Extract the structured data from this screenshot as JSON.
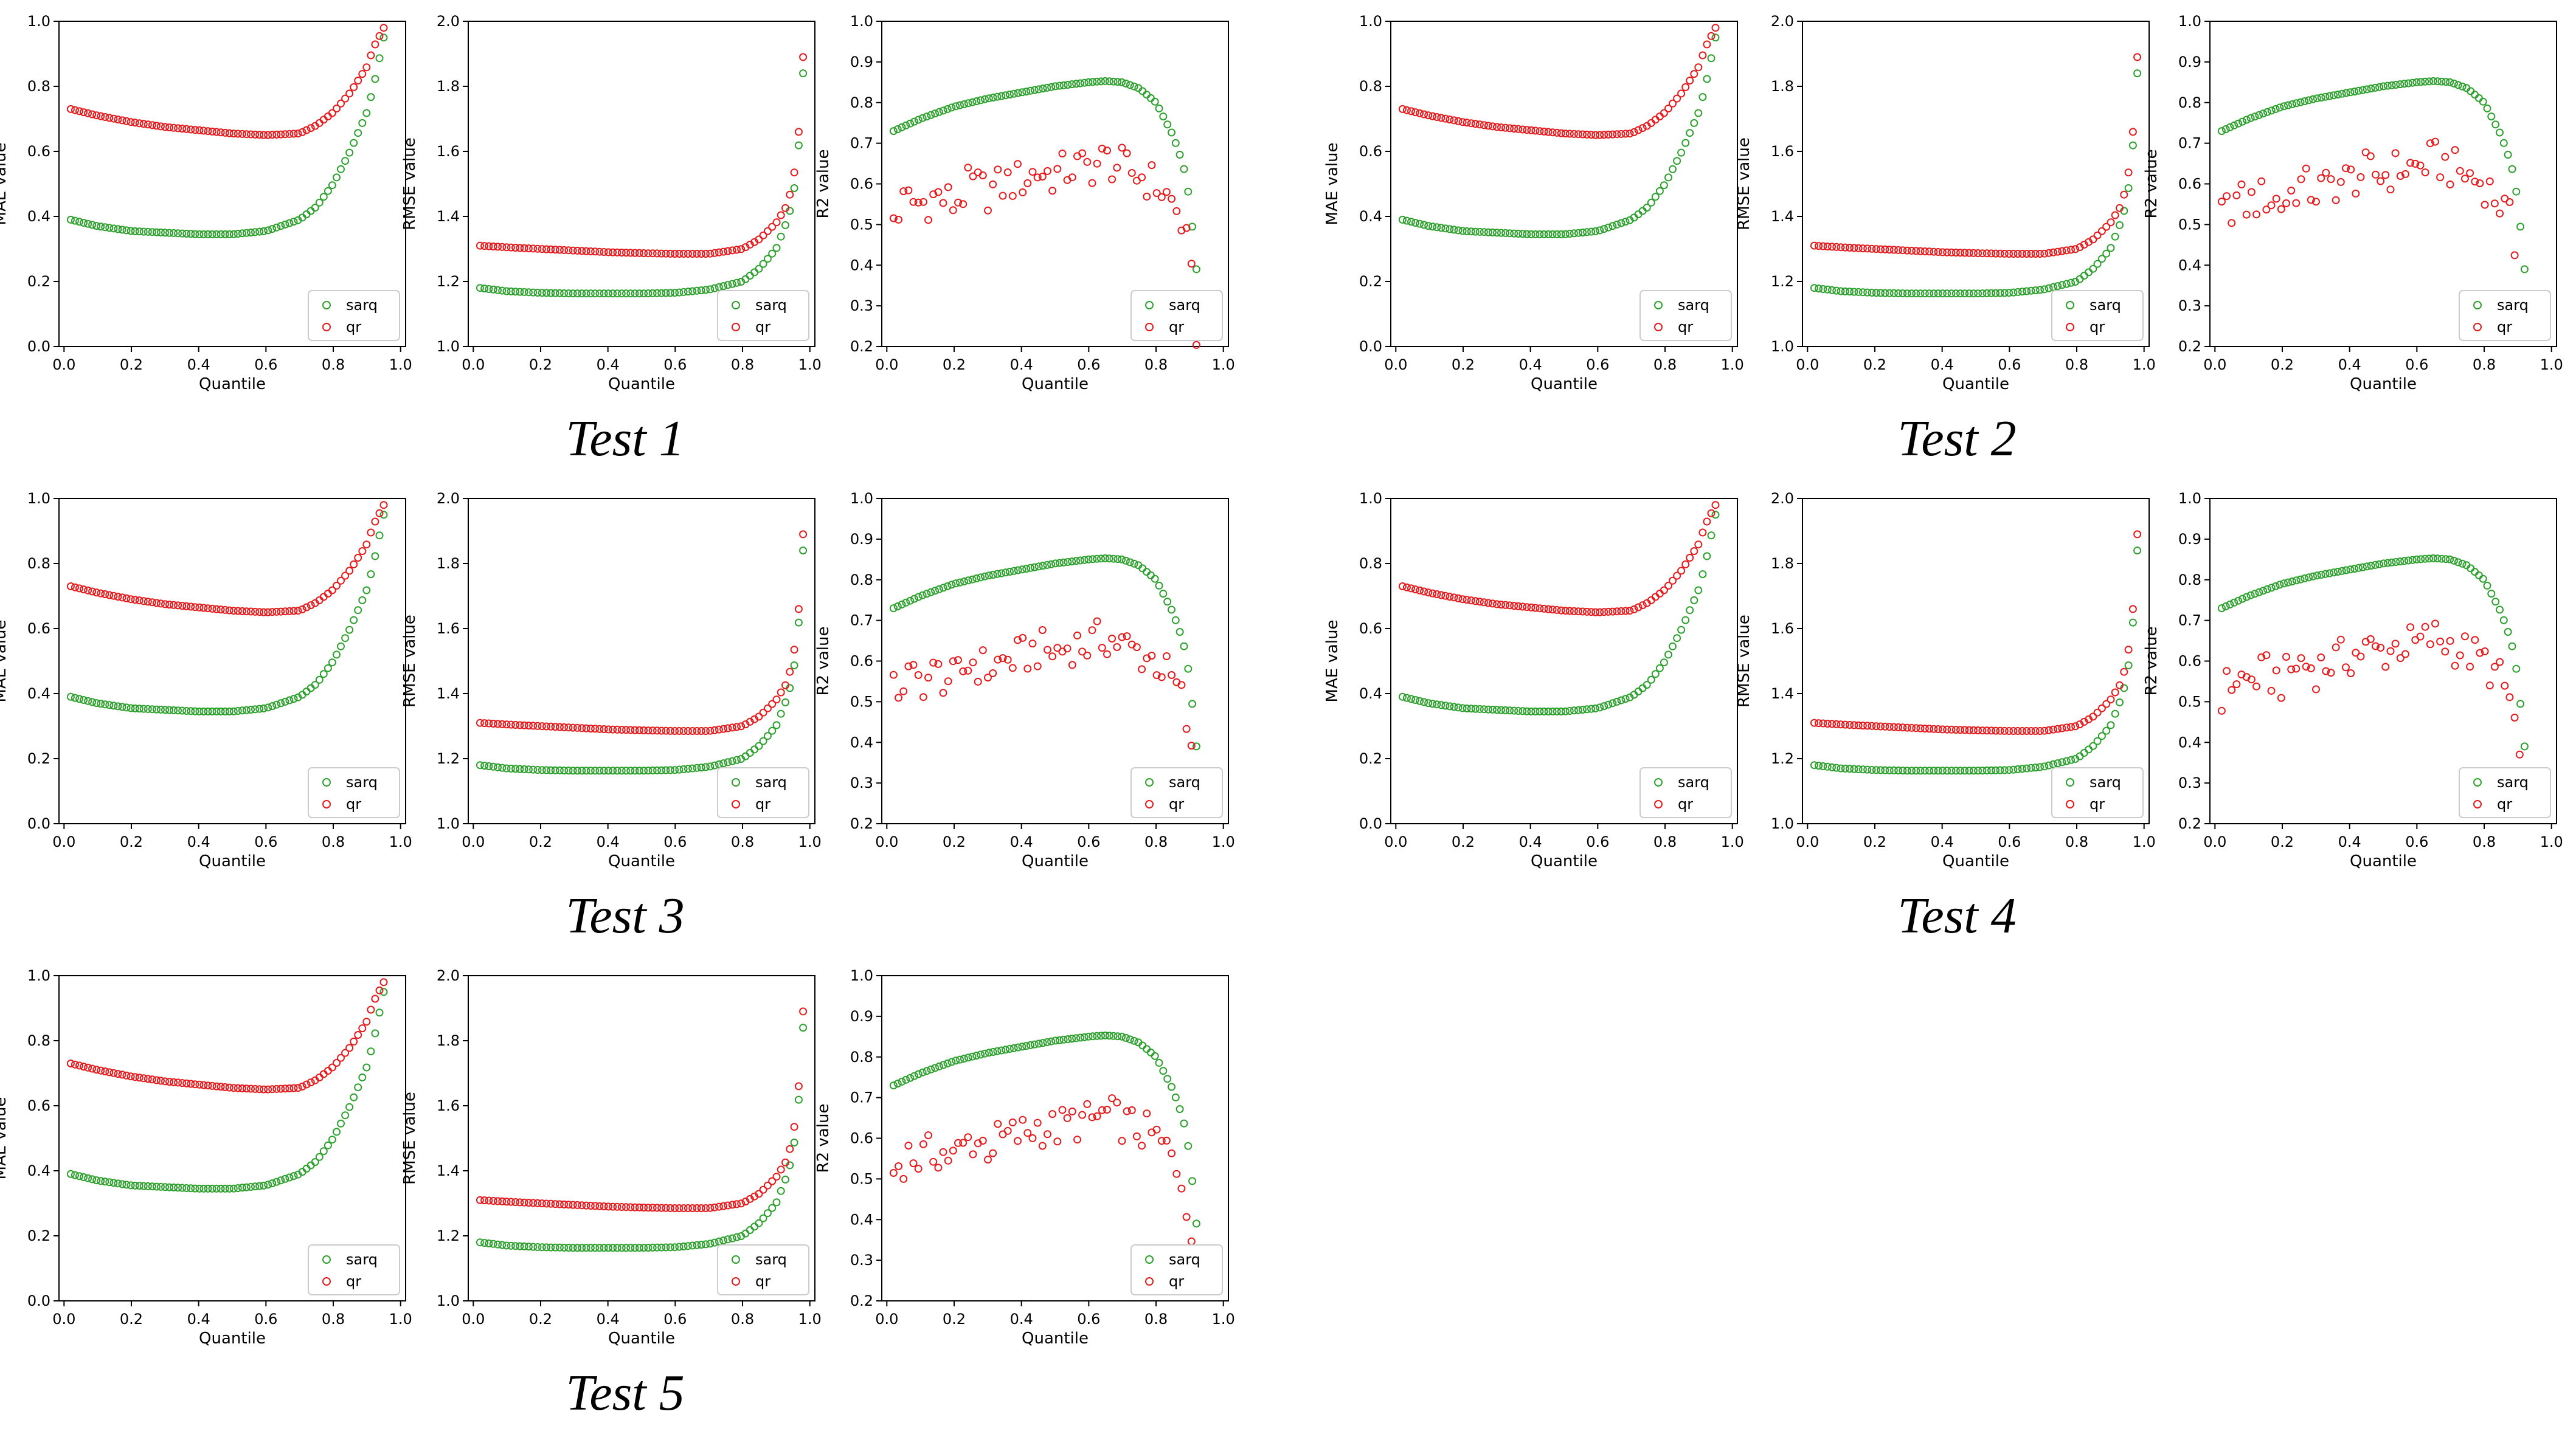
{
  "figure": {
    "x_label": "Quantile",
    "legend": [
      "sarq",
      "qr"
    ],
    "colors": {
      "sarq": "#2ca02c",
      "qr": "#e41a1c",
      "axis": "#000000"
    },
    "legend_position": "bottom-right"
  },
  "tests": [
    {
      "title": "Test 1"
    },
    {
      "title": "Test 2"
    },
    {
      "title": "Test 3"
    },
    {
      "title": "Test 4"
    },
    {
      "title": "Test 5"
    }
  ],
  "chart_data": [
    {
      "type": "scatter",
      "metric": "MAE",
      "ylabel": "MAE value",
      "xlabel": "Quantile",
      "xlim": [
        0,
        1
      ],
      "ylim": [
        0.0,
        1.0
      ],
      "xticks": [
        "0.0",
        "0.2",
        "0.4",
        "0.6",
        "0.8",
        "1.0"
      ],
      "yticks": [
        "0.0",
        "0.2",
        "0.4",
        "0.6",
        "0.8",
        "1.0"
      ],
      "series": [
        {
          "name": "sarq",
          "x": [
            0.02,
            0.1,
            0.2,
            0.3,
            0.4,
            0.5,
            0.6,
            0.7,
            0.75,
            0.8,
            0.85,
            0.9,
            0.92,
            0.95
          ],
          "values": [
            0.39,
            0.37,
            0.355,
            0.35,
            0.345,
            0.345,
            0.355,
            0.39,
            0.43,
            0.5,
            0.6,
            0.72,
            0.8,
            0.95
          ]
        },
        {
          "name": "qr",
          "x": [
            0.02,
            0.1,
            0.2,
            0.3,
            0.4,
            0.5,
            0.6,
            0.7,
            0.75,
            0.8,
            0.85,
            0.9,
            0.92,
            0.95
          ],
          "values": [
            0.73,
            0.71,
            0.69,
            0.675,
            0.665,
            0.655,
            0.65,
            0.655,
            0.68,
            0.72,
            0.78,
            0.86,
            0.92,
            0.98
          ]
        }
      ]
    },
    {
      "type": "scatter",
      "metric": "RMSE",
      "ylabel": "RMSE value",
      "xlabel": "Quantile",
      "xlim": [
        0,
        1
      ],
      "ylim": [
        1.0,
        2.0
      ],
      "xticks": [
        "0.0",
        "0.2",
        "0.4",
        "0.6",
        "0.8",
        "1.0"
      ],
      "yticks": [
        "1.0",
        "1.2",
        "1.4",
        "1.6",
        "1.8",
        "2.0"
      ],
      "series": [
        {
          "name": "sarq",
          "x": [
            0.02,
            0.1,
            0.2,
            0.3,
            0.4,
            0.5,
            0.6,
            0.7,
            0.8,
            0.85,
            0.9,
            0.93,
            0.95,
            0.97,
            0.98
          ],
          "values": [
            1.18,
            1.17,
            1.165,
            1.163,
            1.163,
            1.163,
            1.165,
            1.175,
            1.2,
            1.24,
            1.3,
            1.38,
            1.45,
            1.65,
            1.84
          ]
        },
        {
          "name": "qr",
          "x": [
            0.02,
            0.1,
            0.2,
            0.3,
            0.4,
            0.5,
            0.6,
            0.7,
            0.8,
            0.85,
            0.9,
            0.93,
            0.95,
            0.97,
            0.98
          ],
          "values": [
            1.31,
            1.305,
            1.3,
            1.295,
            1.29,
            1.287,
            1.285,
            1.285,
            1.3,
            1.33,
            1.38,
            1.43,
            1.5,
            1.69,
            1.89
          ]
        }
      ]
    },
    {
      "type": "scatter",
      "metric": "R2",
      "ylabel": "R2 value",
      "xlabel": "Quantile",
      "xlim": [
        0,
        1
      ],
      "ylim": [
        0.2,
        1.0
      ],
      "xticks": [
        "0.0",
        "0.2",
        "0.4",
        "0.6",
        "0.8",
        "1.0"
      ],
      "yticks": [
        "0.2",
        "0.3",
        "0.4",
        "0.5",
        "0.6",
        "0.7",
        "0.8",
        "0.9",
        "1.0"
      ],
      "series": [
        {
          "name": "sarq",
          "x": [
            0.02,
            0.1,
            0.2,
            0.3,
            0.4,
            0.5,
            0.6,
            0.65,
            0.7,
            0.75,
            0.8,
            0.85,
            0.88,
            0.9,
            0.92
          ],
          "values": [
            0.73,
            0.76,
            0.79,
            0.81,
            0.825,
            0.84,
            0.85,
            0.853,
            0.85,
            0.835,
            0.8,
            0.72,
            0.65,
            0.56,
            0.39
          ]
        },
        {
          "name": "qr",
          "x": [
            0.02,
            0.06,
            0.1,
            0.15,
            0.2,
            0.25,
            0.3,
            0.35,
            0.4,
            0.45,
            0.5,
            0.55,
            0.6,
            0.65,
            0.7,
            0.75,
            0.8,
            0.85,
            0.88,
            0.9,
            0.92
          ],
          "values": [
            0.52,
            0.56,
            0.55,
            0.57,
            0.55,
            0.6,
            0.58,
            0.6,
            0.61,
            0.63,
            0.62,
            0.64,
            0.64,
            0.66,
            0.64,
            0.62,
            0.6,
            0.55,
            0.5,
            0.4,
            0.24
          ]
        }
      ]
    }
  ]
}
